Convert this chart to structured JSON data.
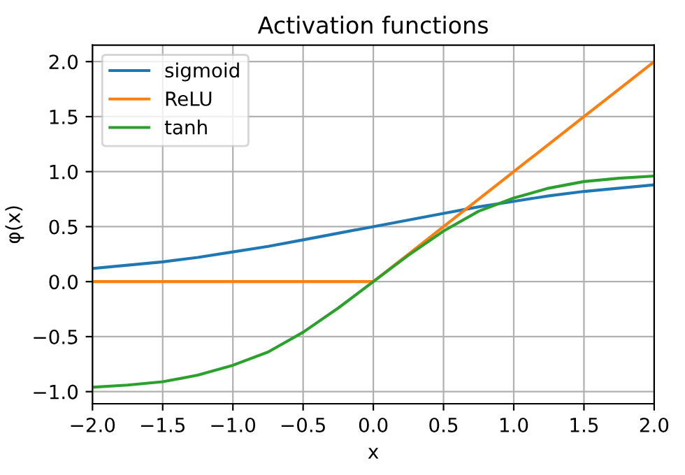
{
  "chart_data": {
    "type": "line",
    "title": "Activation functions",
    "xlabel": "x",
    "ylabel": "φ(x)",
    "x": [
      -2,
      -1.75,
      -1.5,
      -1.25,
      -1,
      -0.75,
      -0.5,
      -0.25,
      0,
      0.25,
      0.5,
      0.75,
      1,
      1.25,
      1.5,
      1.75,
      2
    ],
    "series": [
      {
        "name": "sigmoid",
        "color": "#1f77b4",
        "values": [
          0.12,
          0.15,
          0.18,
          0.22,
          0.27,
          0.32,
          0.38,
          0.44,
          0.5,
          0.56,
          0.62,
          0.68,
          0.73,
          0.78,
          0.82,
          0.85,
          0.88
        ]
      },
      {
        "name": "ReLU",
        "color": "#ff7f0e",
        "values": [
          0,
          0,
          0,
          0,
          0,
          0,
          0,
          0,
          0,
          0.25,
          0.5,
          0.75,
          1,
          1.25,
          1.5,
          1.75,
          2
        ]
      },
      {
        "name": "tanh",
        "color": "#2ca02c",
        "values": [
          -0.96,
          -0.94,
          -0.91,
          -0.85,
          -0.76,
          -0.64,
          -0.46,
          -0.24,
          0,
          0.24,
          0.46,
          0.64,
          0.76,
          0.85,
          0.91,
          0.94,
          0.96
        ]
      }
    ],
    "xlim": [
      -2,
      2
    ],
    "ylim": [
      -1.11,
      2.15
    ],
    "xticks": [
      {
        "value": -2,
        "label": "−2.0"
      },
      {
        "value": -1.5,
        "label": "−1.5"
      },
      {
        "value": -1,
        "label": "−1.0"
      },
      {
        "value": -0.5,
        "label": "−0.5"
      },
      {
        "value": 0,
        "label": "0.0"
      },
      {
        "value": 0.5,
        "label": "0.5"
      },
      {
        "value": 1,
        "label": "1.0"
      },
      {
        "value": 1.5,
        "label": "1.5"
      },
      {
        "value": 2,
        "label": "2.0"
      }
    ],
    "yticks": [
      {
        "value": -1,
        "label": "−1.0"
      },
      {
        "value": -0.5,
        "label": "−0.5"
      },
      {
        "value": 0,
        "label": "0.0"
      },
      {
        "value": 0.5,
        "label": "0.5"
      },
      {
        "value": 1,
        "label": "1.0"
      },
      {
        "value": 1.5,
        "label": "1.5"
      },
      {
        "value": 2,
        "label": "2.0"
      }
    ],
    "grid": true,
    "legend": "top left",
    "marker": "none",
    "line_style": "solid"
  }
}
